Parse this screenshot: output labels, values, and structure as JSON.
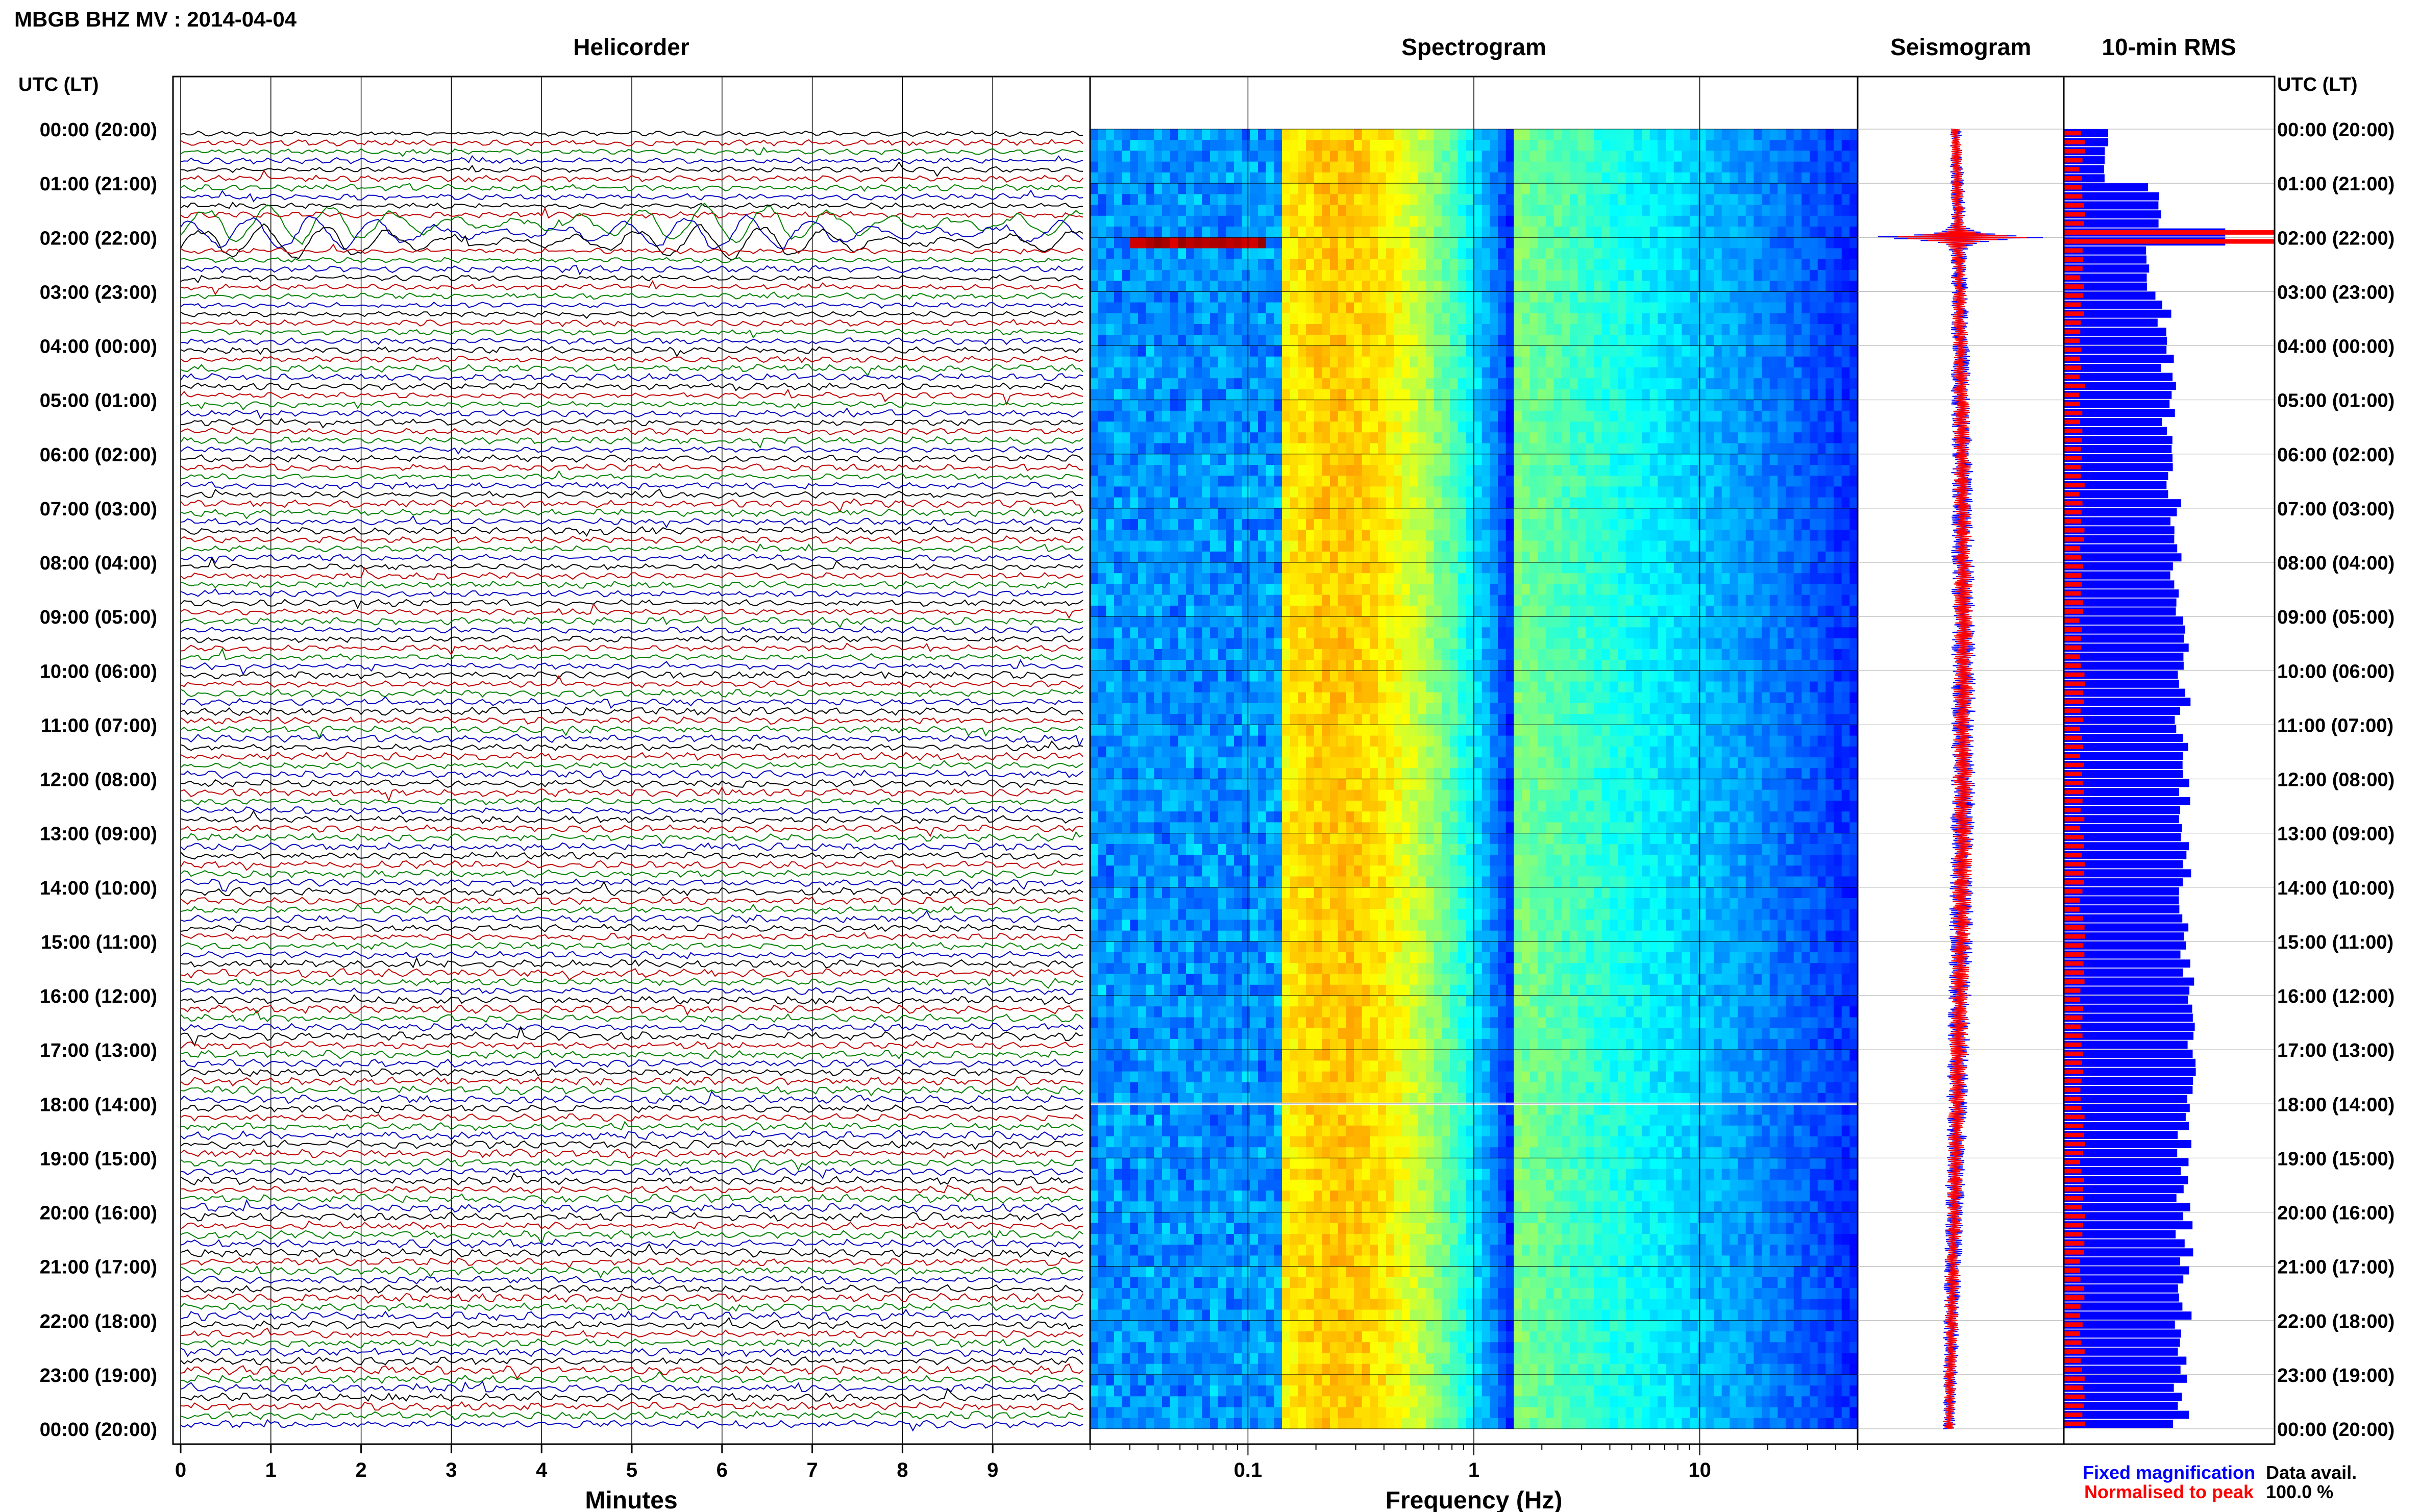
{
  "header": {
    "station_title": "MBGB BHZ MV : 2014-04-04",
    "axis_label_left": "UTC (LT)",
    "axis_label_right": "UTC (LT)"
  },
  "panels": {
    "helicorder": "Helicorder",
    "spectrogram": "Spectrogram",
    "seismogram": "Seismogram",
    "rms": "10-min RMS"
  },
  "time_labels": [
    "00:00 (20:00)",
    "01:00 (21:00)",
    "02:00 (22:00)",
    "03:00 (23:00)",
    "04:00 (00:00)",
    "05:00 (01:00)",
    "06:00 (02:00)",
    "07:00 (03:00)",
    "08:00 (04:00)",
    "09:00 (05:00)",
    "10:00 (06:00)",
    "11:00 (07:00)",
    "12:00 (08:00)",
    "13:00 (09:00)",
    "14:00 (10:00)",
    "15:00 (11:00)",
    "16:00 (12:00)",
    "17:00 (13:00)",
    "18:00 (14:00)",
    "19:00 (15:00)",
    "20:00 (16:00)",
    "21:00 (17:00)",
    "22:00 (18:00)",
    "23:00 (19:00)",
    "00:00 (20:00)"
  ],
  "footer": {
    "fixed_magnification": "Fixed magnification",
    "normalised_to_peak": "Normalised to peak",
    "data_avail_label": "Data avail.",
    "data_avail_value": "100.0 %"
  },
  "colors": {
    "trace_colors": [
      "#000000",
      "#c00000",
      "#008000",
      "#0000c0"
    ],
    "fixed": "#0000ff",
    "normalised": "#ff0000"
  },
  "chart_data": [
    {
      "type": "line",
      "panel": "Helicorder",
      "xlabel": "Minutes",
      "x_ticks": [
        "0",
        "1",
        "2",
        "3",
        "4",
        "5",
        "6",
        "7",
        "8",
        "9"
      ],
      "xlim": [
        0,
        10
      ],
      "lines_per_hour": 6,
      "hours": 24,
      "event": {
        "hour_start": 1.7,
        "hour_end": 2.2
      }
    },
    {
      "type": "heatmap",
      "panel": "Spectrogram",
      "xlabel": "Frequency (Hz)",
      "x_scale": "log",
      "x_ticks": [
        "0.1",
        "1",
        "10"
      ],
      "xlim": [
        0.02,
        50
      ]
    },
    {
      "type": "line",
      "panel": "Seismogram",
      "peak_hour": 2.0
    },
    {
      "type": "bar",
      "panel": "10-min RMS",
      "orientation": "horizontal",
      "series": [
        {
          "name": "Fixed magnification",
          "color": "#0000ff"
        },
        {
          "name": "Normalised to peak",
          "color": "#ff0000"
        }
      ],
      "peak_hour": 2.0
    }
  ]
}
